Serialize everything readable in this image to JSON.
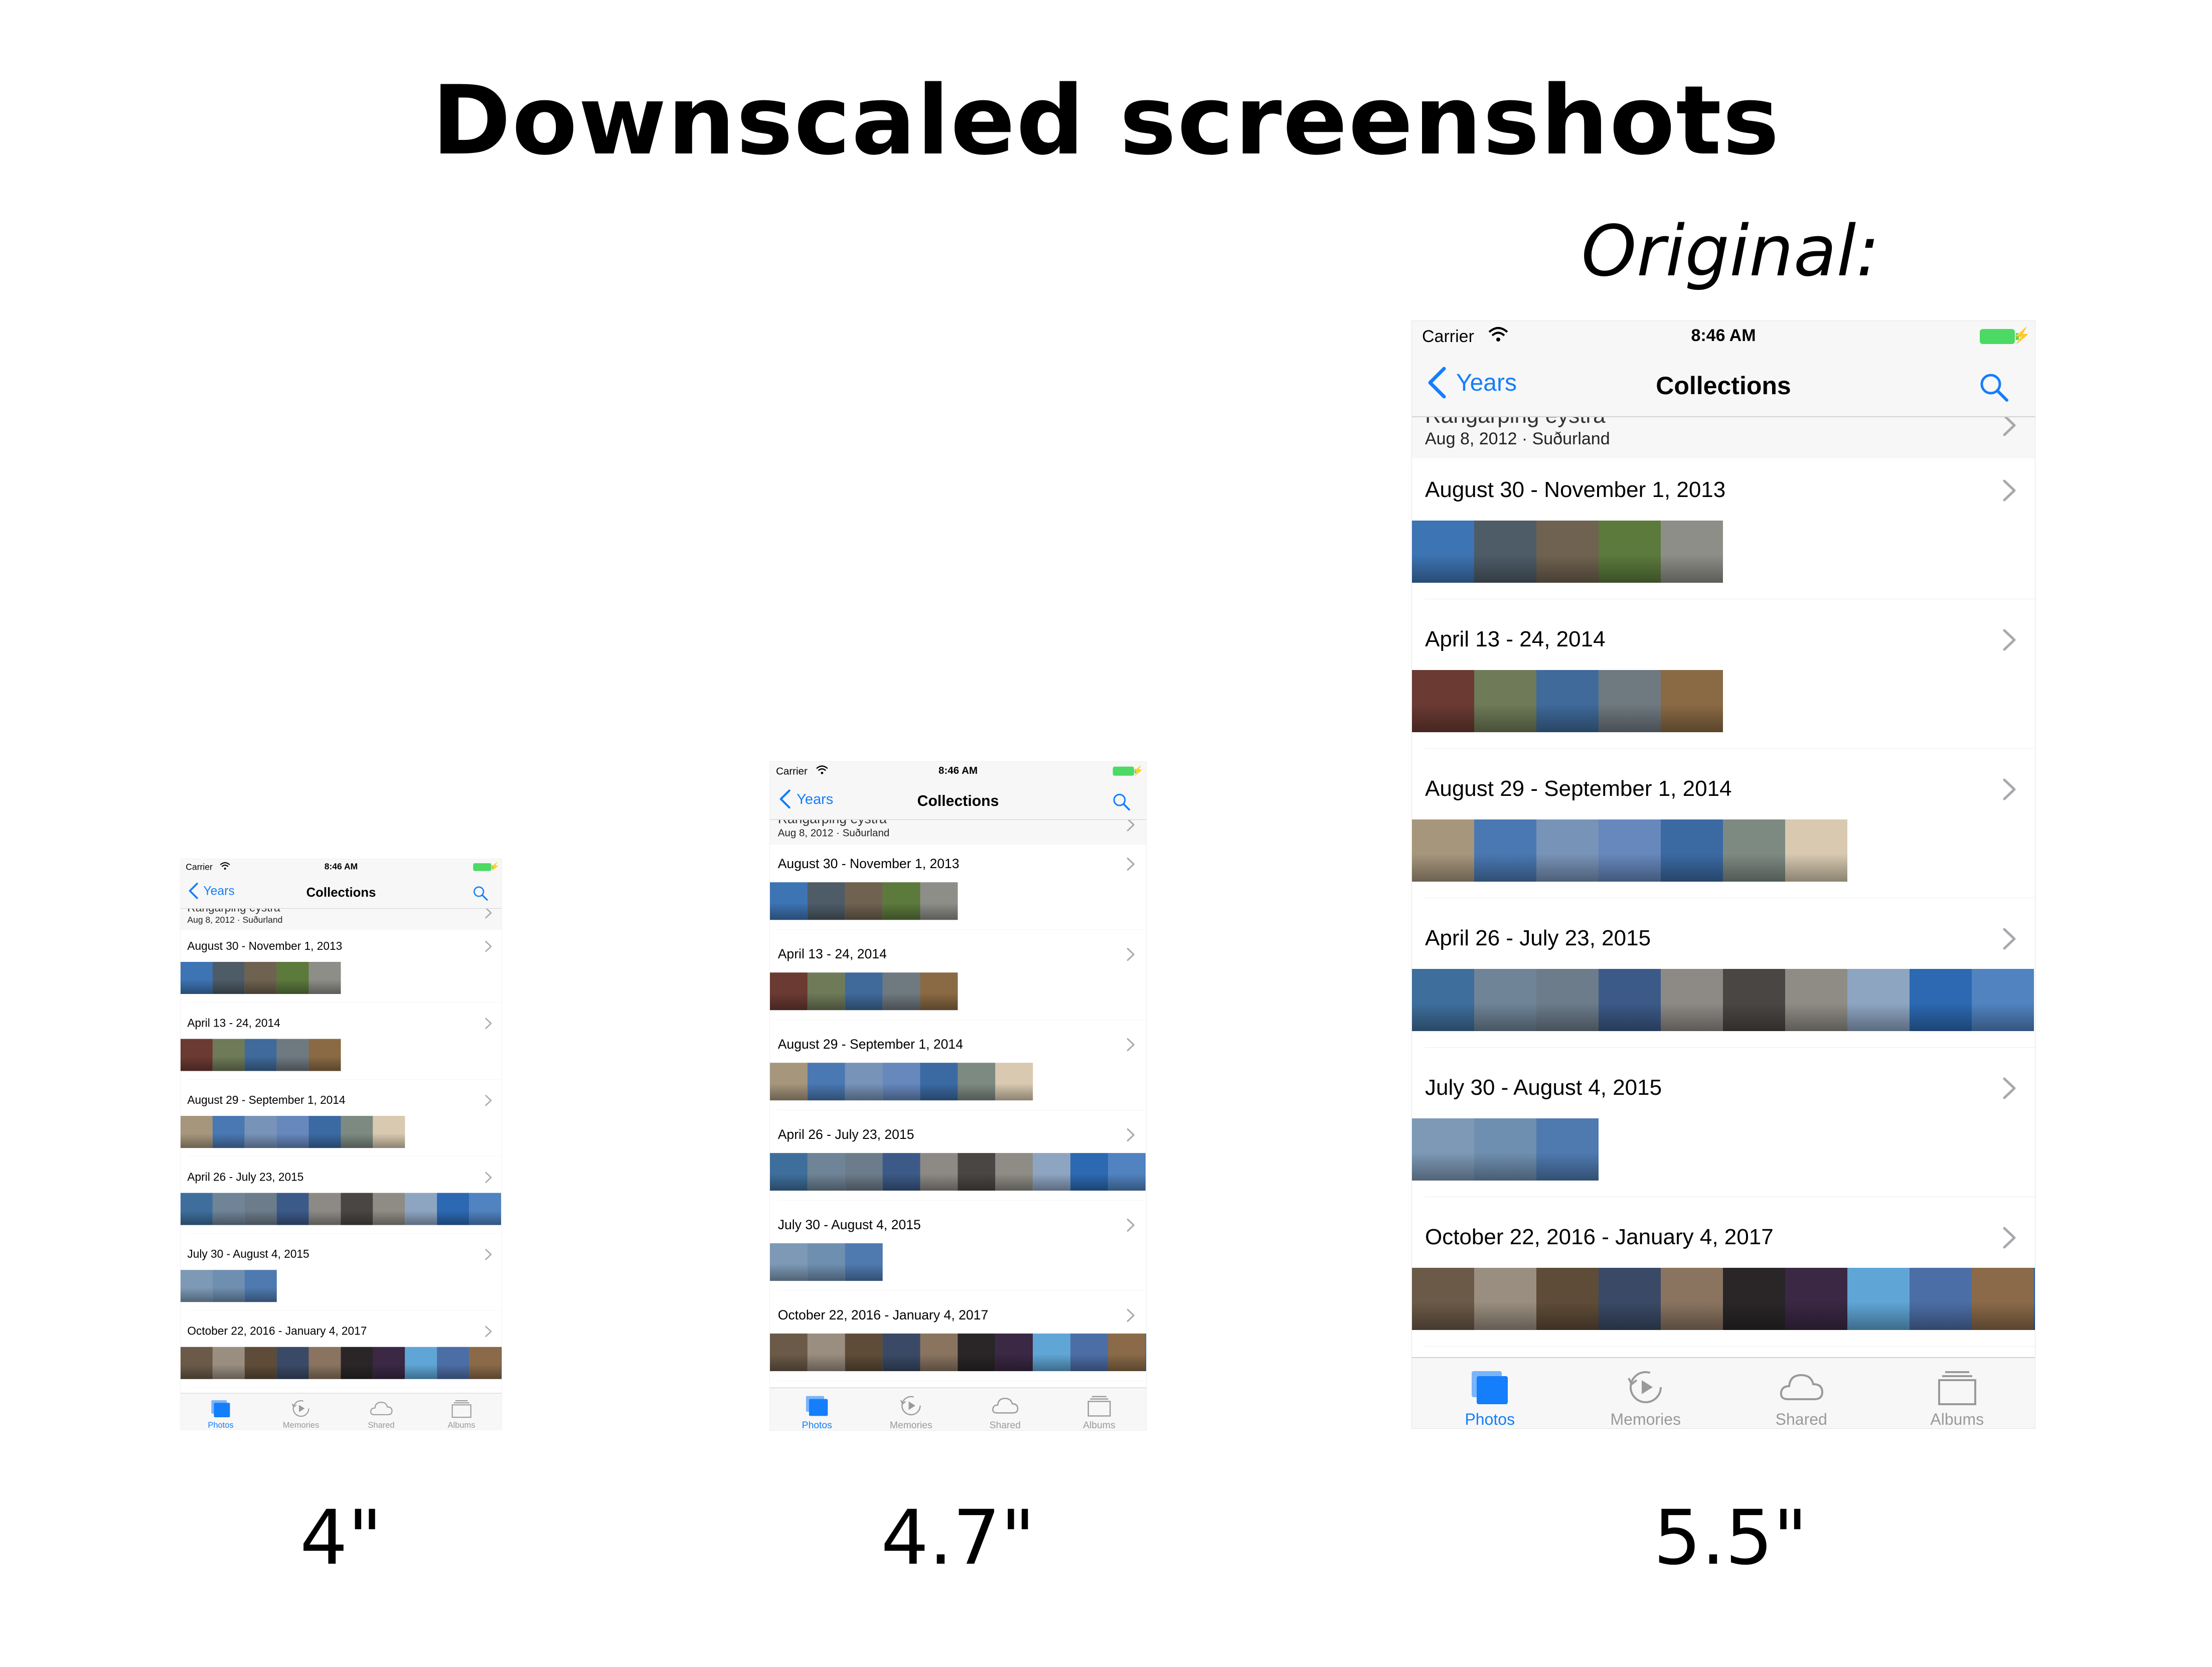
{
  "heading": "Downscaled screenshots",
  "original_label": "Original:",
  "size_labels": [
    "4\"",
    "4.7\"",
    "5.5\""
  ],
  "screen": {
    "status": {
      "carrier": "Carrier",
      "time": "8:46 AM"
    },
    "nav": {
      "back_label": "Years",
      "title": "Collections",
      "accent": "#157efb"
    },
    "sticky": {
      "ghost": "Rangárþing eystra",
      "subtitle": "Aug 8, 2012 · Suðurland"
    },
    "sections": [
      {
        "title": "August 30 - November 1, 2013",
        "thumbs": [
          "#3d74b3",
          "#4e5c68",
          "#6f6250",
          "#5c7a3c",
          "#8d8e88"
        ]
      },
      {
        "title": "April 13 - 24, 2014",
        "thumbs": [
          "#6b3a33",
          "#6f7a58",
          "#3f6a9a",
          "#6f7980",
          "#8a6a44"
        ]
      },
      {
        "title": "August 29 - September 1, 2014",
        "thumbs": [
          "#a6967c",
          "#4a78b2",
          "#7893b8",
          "#6688bd",
          "#3b6aa3",
          "#7d8a82",
          "#d8c9b0"
        ]
      },
      {
        "title": "April 26 - July 23, 2015",
        "thumbs": [
          "#3e6f9c",
          "#6f8497",
          "#6c7c8a",
          "#3c5a88",
          "#8d8a86",
          "#4a4644",
          "#8e8c84",
          "#8ea5c2",
          "#2c69b2",
          "#5083c0"
        ]
      },
      {
        "title": "July 30 - August 4, 2015",
        "thumbs": [
          "#7d99b5",
          "#6f8fb0",
          "#4f7ab0"
        ]
      },
      {
        "title": "October 22, 2016 - January 4, 2017",
        "thumbs": [
          "#6b5a48",
          "#9a8e80",
          "#5f4c38",
          "#3a4a66",
          "#8a7460",
          "#2a2628",
          "#3a2844",
          "#5fa6d6",
          "#4c6ea6",
          "#8a6a48",
          "#1f5db2"
        ]
      }
    ],
    "tabs": [
      {
        "label": "Photos",
        "icon": "photos-icon",
        "active": true
      },
      {
        "label": "Memories",
        "icon": "memories-icon",
        "active": false
      },
      {
        "label": "Shared",
        "icon": "shared-cloud-icon",
        "active": false
      },
      {
        "label": "Albums",
        "icon": "albums-icon",
        "active": false
      }
    ]
  }
}
